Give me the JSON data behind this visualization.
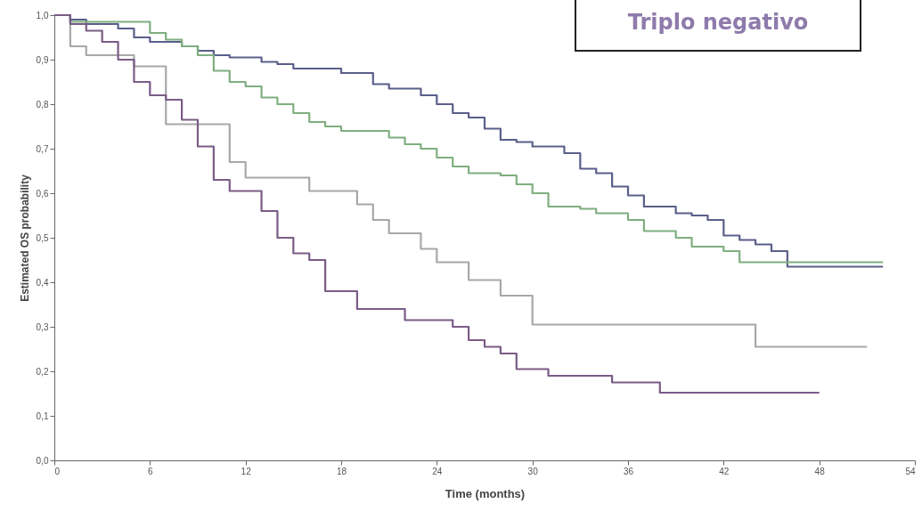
{
  "chart_data": {
    "type": "step",
    "xlabel": "Time (months)",
    "ylabel": "Estimated OS probability",
    "annotations": [
      "Triplo negativo"
    ],
    "xlim": [
      0,
      54
    ],
    "xticks": [
      0,
      6,
      12,
      18,
      24,
      30,
      36,
      42,
      48,
      54
    ],
    "ylim": [
      0,
      1
    ],
    "yticks": [
      {
        "value": 0,
        "label": "0,0"
      },
      {
        "value": 0.1,
        "label": "0,1"
      },
      {
        "value": 0.2,
        "label": "0,2"
      },
      {
        "value": 0.3,
        "label": "0,3"
      },
      {
        "value": 0.4,
        "label": "0,4"
      },
      {
        "value": 0.5,
        "label": "0,5"
      },
      {
        "value": 0.6,
        "label": "0,6"
      },
      {
        "value": 0.7,
        "label": "0,7"
      },
      {
        "value": 0.8,
        "label": "0,8"
      },
      {
        "value": 0.9,
        "label": "0,9"
      },
      {
        "value": 1,
        "label": "1,0"
      }
    ],
    "grid": false,
    "marker": "none",
    "line_style": "solid",
    "series": [
      {
        "color": "#5a5f8a",
        "x": [
          0,
          1,
          2,
          4,
          5,
          6,
          8,
          9,
          10,
          11,
          13,
          14,
          15,
          18,
          20,
          21,
          23,
          24,
          25,
          26,
          27,
          28,
          29,
          30,
          32,
          33,
          34,
          35,
          36,
          37,
          39,
          40,
          41,
          42,
          43,
          44,
          45,
          46,
          52
        ],
        "values": [
          1,
          0.99,
          0.98,
          0.97,
          0.95,
          0.94,
          0.93,
          0.92,
          0.91,
          0.905,
          0.895,
          0.89,
          0.88,
          0.87,
          0.845,
          0.835,
          0.82,
          0.8,
          0.78,
          0.77,
          0.745,
          0.72,
          0.715,
          0.705,
          0.69,
          0.655,
          0.645,
          0.615,
          0.595,
          0.57,
          0.555,
          0.55,
          0.54,
          0.505,
          0.495,
          0.485,
          0.47,
          0.435,
          0.435
        ]
      },
      {
        "color": "#7fae7f",
        "x": [
          0,
          1,
          6,
          7,
          8,
          9,
          10,
          11,
          12,
          13,
          14,
          15,
          16,
          17,
          18,
          21,
          22,
          23,
          24,
          25,
          26,
          28,
          29,
          30,
          31,
          33,
          34,
          36,
          37,
          39,
          40,
          42,
          43,
          52
        ],
        "values": [
          1,
          0.985,
          0.96,
          0.945,
          0.93,
          0.91,
          0.875,
          0.85,
          0.84,
          0.815,
          0.8,
          0.78,
          0.76,
          0.75,
          0.74,
          0.725,
          0.71,
          0.7,
          0.68,
          0.66,
          0.645,
          0.64,
          0.62,
          0.6,
          0.57,
          0.565,
          0.555,
          0.54,
          0.515,
          0.5,
          0.48,
          0.47,
          0.445,
          0.445
        ]
      },
      {
        "color": "#a8a8a8",
        "x": [
          0,
          1,
          2,
          5,
          7,
          11,
          12,
          16,
          19,
          20,
          21,
          23,
          24,
          26,
          28,
          30,
          44,
          51
        ],
        "values": [
          1,
          0.93,
          0.91,
          0.885,
          0.755,
          0.67,
          0.635,
          0.605,
          0.575,
          0.54,
          0.51,
          0.475,
          0.445,
          0.405,
          0.37,
          0.305,
          0.255,
          0.255
        ]
      },
      {
        "color": "#7a5c86",
        "x": [
          0,
          1,
          2,
          3,
          4,
          5,
          6,
          7,
          8,
          9,
          10,
          11,
          13,
          14,
          15,
          16,
          17,
          19,
          22,
          25,
          26,
          27,
          28,
          29,
          31,
          35,
          38,
          48
        ],
        "values": [
          1,
          0.98,
          0.965,
          0.94,
          0.9,
          0.85,
          0.82,
          0.81,
          0.765,
          0.705,
          0.63,
          0.605,
          0.56,
          0.5,
          0.465,
          0.45,
          0.38,
          0.34,
          0.315,
          0.3,
          0.27,
          0.255,
          0.24,
          0.205,
          0.19,
          0.175,
          0.152,
          0.152
        ]
      }
    ]
  }
}
